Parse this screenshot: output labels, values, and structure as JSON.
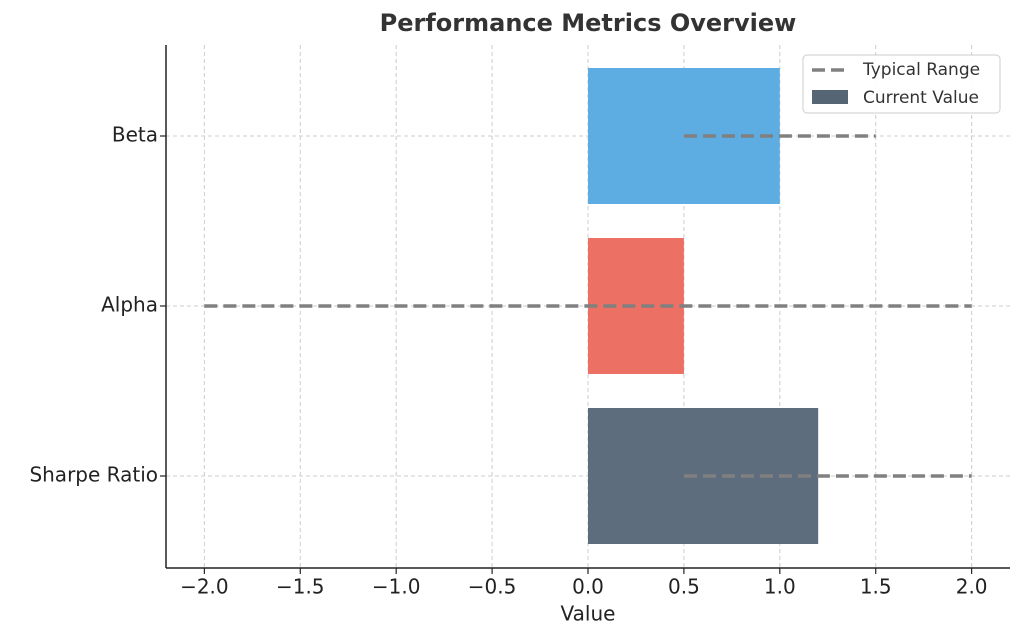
{
  "chart_data": {
    "type": "hbar_range",
    "title": "Performance Metrics Overview",
    "x_label": "Value",
    "categories": [
      "Beta",
      "Alpha",
      "Sharpe Ratio"
    ],
    "series": [
      {
        "name": "Current Value",
        "color": "#566573",
        "bar_colors": [
          "#5dade2",
          "#ec7063",
          "#5d6d7e"
        ],
        "values": [
          1.0,
          0.5,
          1.2
        ]
      }
    ],
    "range": {
      "name": "Typical Range",
      "color": "#808080",
      "low": [
        0.5,
        -2.0,
        0.5
      ],
      "high": [
        1.5,
        2.0,
        2.0
      ]
    },
    "xlim": [
      -2.2,
      2.2
    ],
    "xticks": [
      {
        "value": -2,
        "label": "−2.0"
      },
      {
        "value": -1.5,
        "label": "−1.5"
      },
      {
        "value": -1,
        "label": "−1.0"
      },
      {
        "value": -0.5,
        "label": "−0.5"
      },
      {
        "value": 0,
        "label": "0.0"
      },
      0.5,
      {
        "value": 1,
        "label": "1.0"
      },
      1.5,
      {
        "value": 2,
        "label": "2.0"
      }
    ],
    "grid": true,
    "legend": "upper right"
  }
}
